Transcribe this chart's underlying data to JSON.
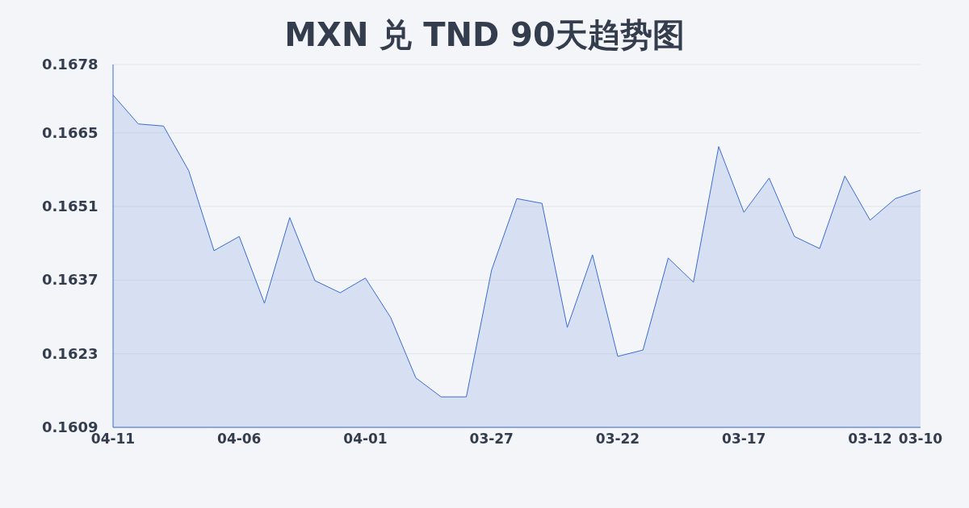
{
  "chart_data": {
    "type": "area",
    "title": "MXN 兑 TND 90天趋势图",
    "categories": [
      "04-11",
      null,
      null,
      null,
      null,
      "04-06",
      null,
      null,
      null,
      null,
      "04-01",
      null,
      null,
      null,
      null,
      "03-27",
      null,
      null,
      null,
      null,
      "03-22",
      null,
      null,
      null,
      null,
      "03-17",
      null,
      null,
      null,
      null,
      "03-12",
      null,
      "03-10"
    ],
    "series": [
      {
        "color": "#3a6bd4",
        "values": [
          0.16722,
          0.16667,
          0.16663,
          0.16578,
          0.16426,
          0.16453,
          0.16326,
          0.16489,
          0.16369,
          0.16346,
          0.16374,
          0.16299,
          0.16184,
          0.16148,
          0.16148,
          0.16389,
          0.16525,
          0.16516,
          0.1628,
          0.16418,
          0.16225,
          0.16237,
          0.16412,
          0.16366,
          0.16624,
          0.16499,
          0.16564,
          0.16453,
          0.1643,
          0.16568,
          0.16484,
          0.16525,
          0.16541
        ]
      }
    ],
    "ylim": [
      0.1609,
      0.1678
    ],
    "yticks": [
      0.1609,
      0.1623,
      0.1637,
      0.1651,
      0.1665,
      0.1678
    ],
    "grid": "y",
    "marker": "none",
    "line_style": "solid"
  }
}
